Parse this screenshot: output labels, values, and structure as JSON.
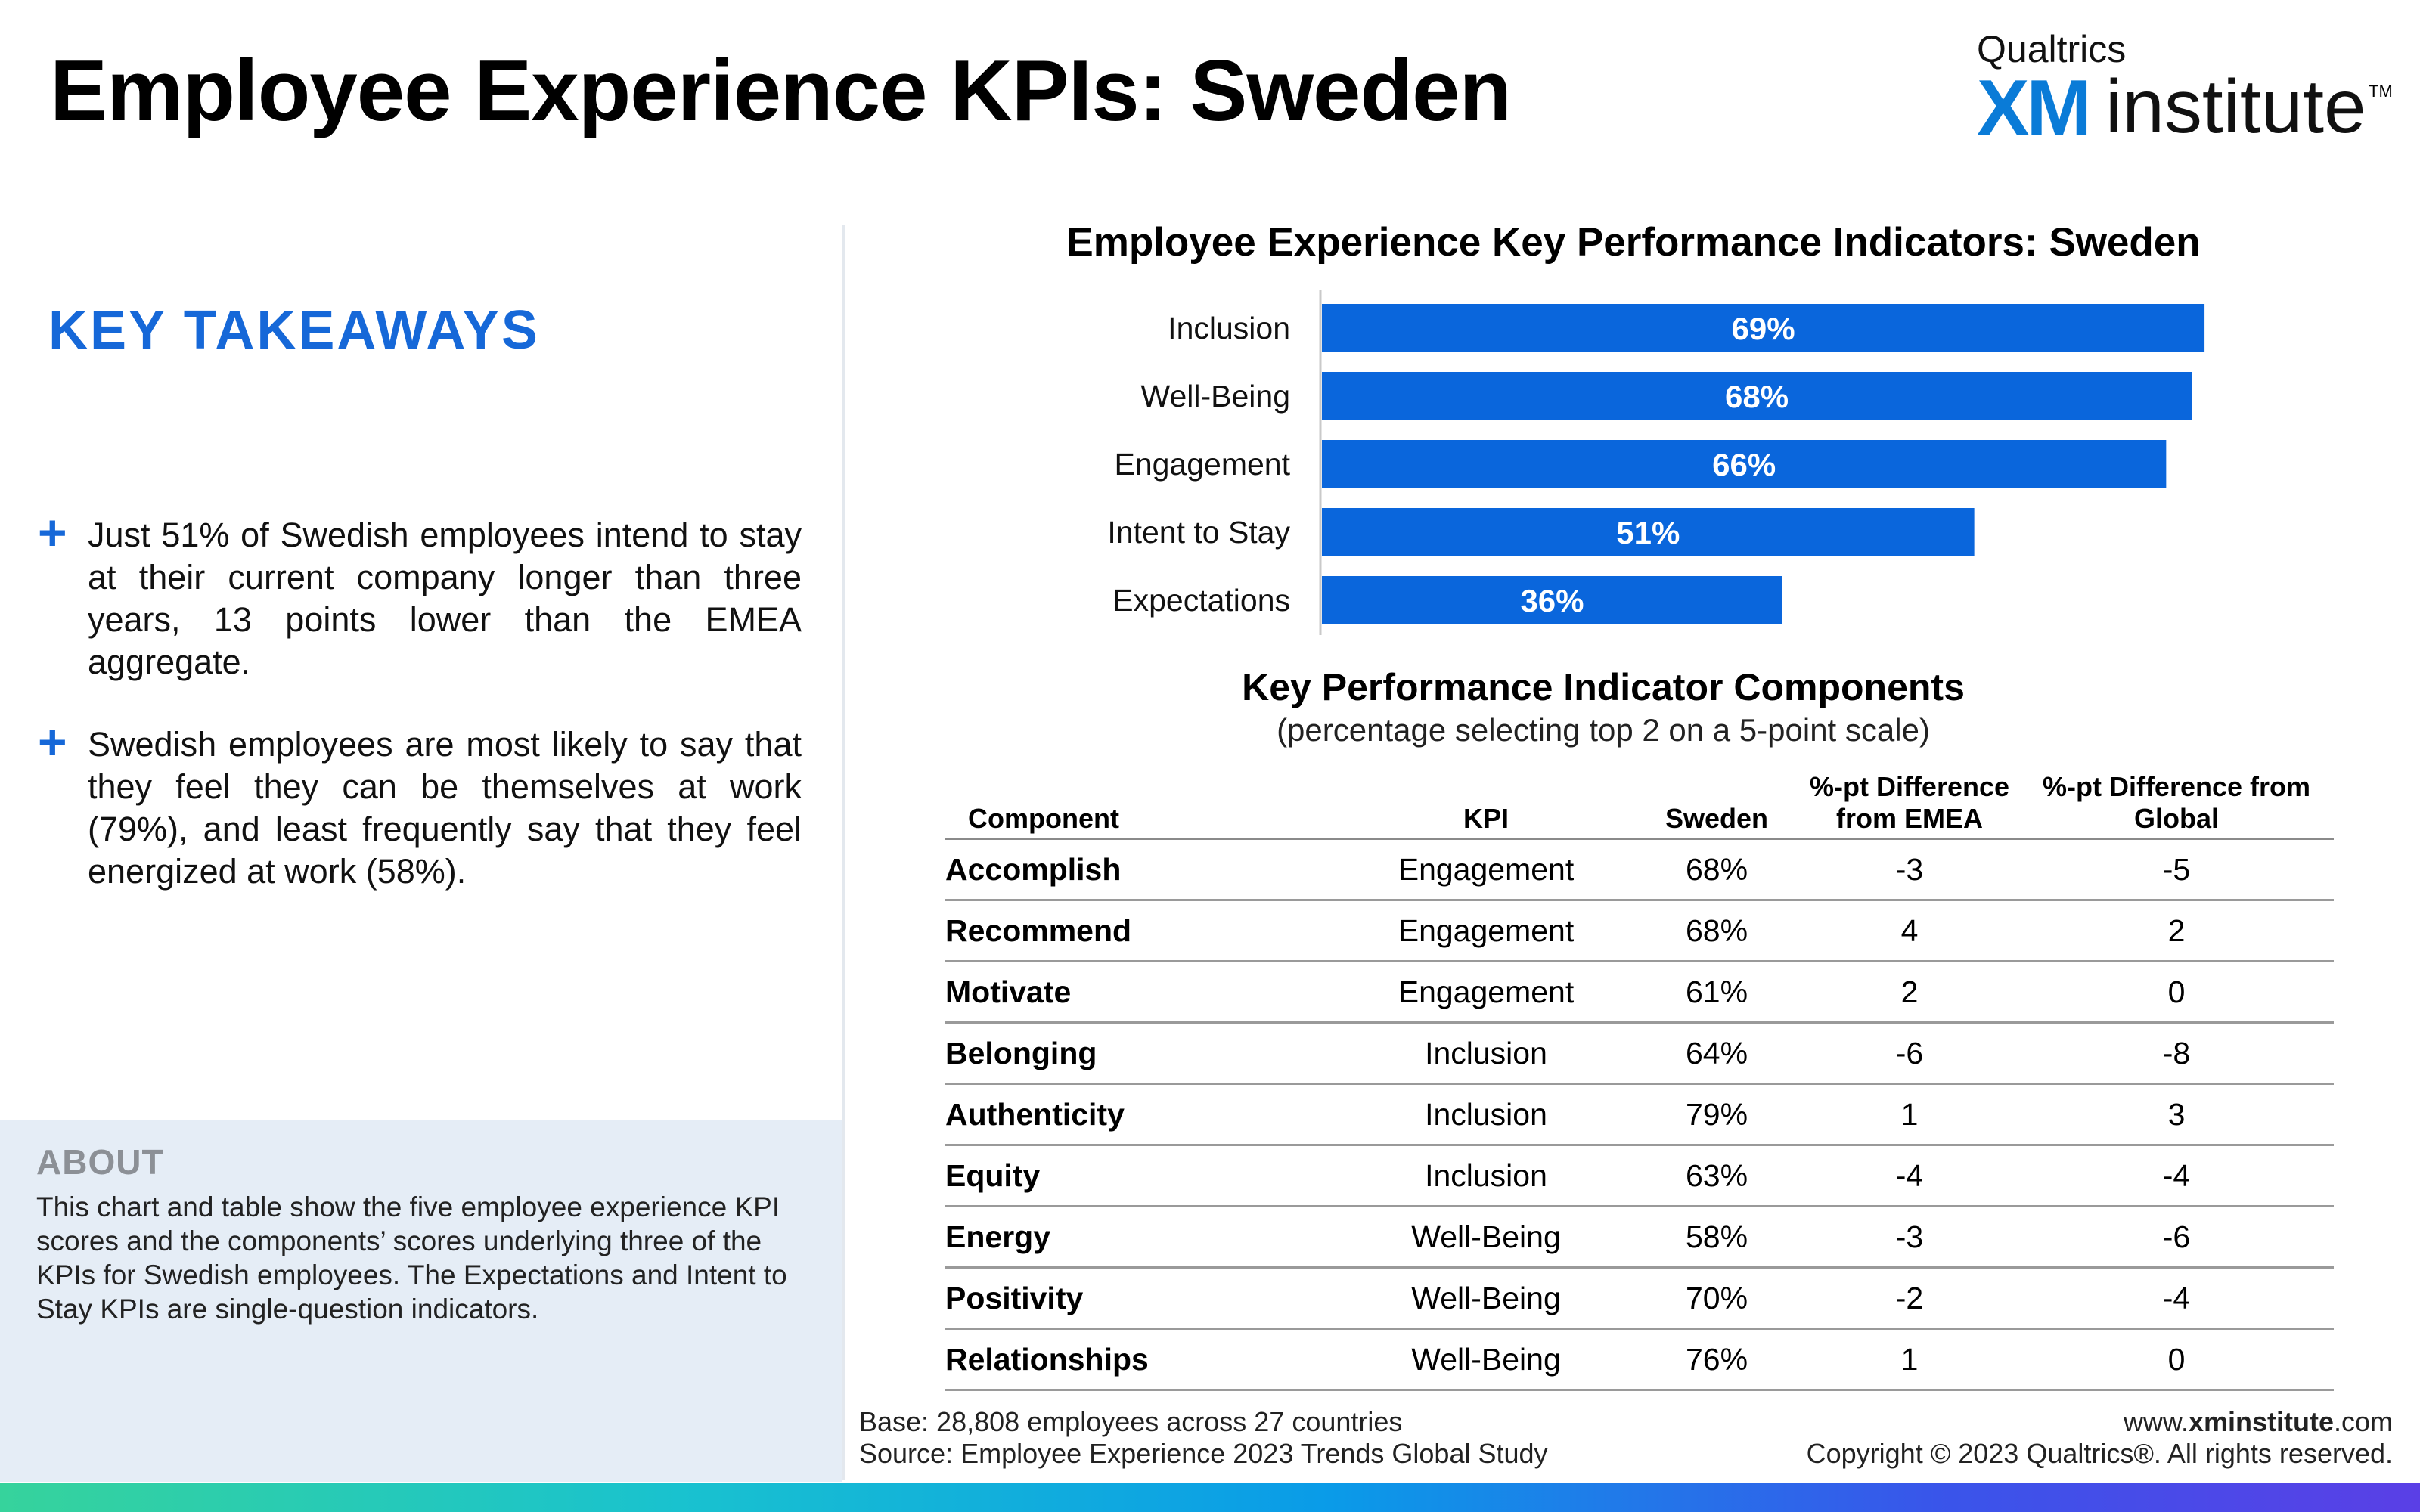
{
  "page": {
    "title": "Employee Experience KPIs: Sweden"
  },
  "logo": {
    "top": "Qualtrics",
    "xm": "XM",
    "institute": "institute",
    "tm": "TM"
  },
  "takeaways": {
    "heading": "KEY TAKEAWAYS",
    "bullets": [
      "Just 51% of Swedish employees intend to stay at their current company longer than three years, 13 points lower than the EMEA aggregate.",
      "Swedish employees are most likely to say that they feel they can be themselves at work (79%), and least frequently say that they feel energized at work (58%)."
    ]
  },
  "about": {
    "title": "ABOUT",
    "text": "This chart and table show the five employee experience KPI scores and the components’ scores underlying three of the KPIs for Swedish employees. The Expectations and Intent to Stay KPIs are single-question indicators."
  },
  "chart_data": {
    "type": "bar",
    "orientation": "horizontal",
    "title": "Employee Experience Key Performance Indicators: Sweden",
    "categories": [
      "Inclusion",
      "Well-Being",
      "Engagement",
      "Intent to Stay",
      "Expectations"
    ],
    "values": [
      69,
      68,
      66,
      51,
      36
    ],
    "value_labels": [
      "69%",
      "68%",
      "66%",
      "51%",
      "36%"
    ],
    "xlim": [
      0,
      70
    ],
    "bar_color": "#0a66dc",
    "label_color": "#ffffff",
    "grid": false
  },
  "table": {
    "title": "Key Performance Indicator Components",
    "subtitle": "(percentage selecting top 2 on a 5-point scale)",
    "headers": [
      "Component",
      "KPI",
      "Sweden",
      "%-pt Difference from EMEA",
      "%-pt Difference from Global"
    ],
    "rows": [
      [
        "Accomplish",
        "Engagement",
        "68%",
        "-3",
        "-5"
      ],
      [
        "Recommend",
        "Engagement",
        "68%",
        "4",
        "2"
      ],
      [
        "Motivate",
        "Engagement",
        "61%",
        "2",
        "0"
      ],
      [
        "Belonging",
        "Inclusion",
        "64%",
        "-6",
        "-8"
      ],
      [
        "Authenticity",
        "Inclusion",
        "79%",
        "1",
        "3"
      ],
      [
        "Equity",
        "Inclusion",
        "63%",
        "-4",
        "-4"
      ],
      [
        "Energy",
        "Well-Being",
        "58%",
        "-3",
        "-6"
      ],
      [
        "Positivity",
        "Well-Being",
        "70%",
        "-2",
        "-4"
      ],
      [
        "Relationships",
        "Well-Being",
        "76%",
        "1",
        "0"
      ]
    ]
  },
  "footer": {
    "base": "Base: 28,808 employees across 27 countries",
    "source": "Source: Employee Experience 2023 Trends Global Study",
    "url_prefix": "www.",
    "url_bold": "xminstitute",
    "url_suffix": ".com",
    "copyright": "Copyright © 2023 Qualtrics®. All rights reserved."
  }
}
